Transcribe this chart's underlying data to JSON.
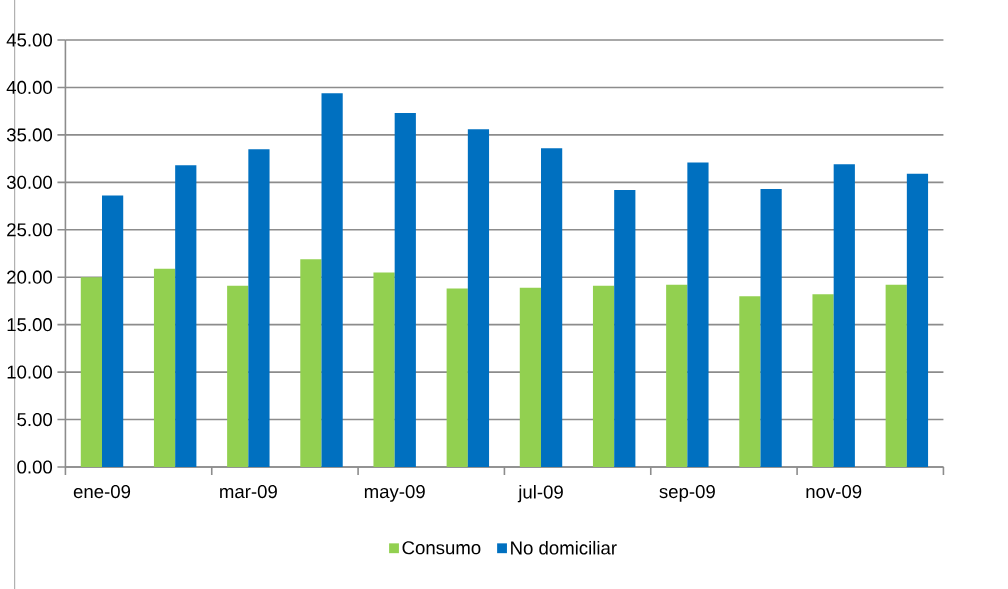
{
  "chart_data": {
    "type": "bar",
    "categories": [
      "ene-09",
      null,
      "mar-09",
      null,
      "may-09",
      null,
      "jul-09",
      null,
      "sep-09",
      null,
      "nov-09",
      null
    ],
    "series": [
      {
        "name": "Consumo",
        "color": "#92d050",
        "values": [
          20.0,
          20.9,
          19.1,
          21.9,
          20.5,
          18.8,
          18.9,
          19.1,
          19.2,
          18.0,
          18.2,
          19.2
        ]
      },
      {
        "name": "No domiciliar",
        "color": "#0070c0",
        "values": [
          28.6,
          31.8,
          33.5,
          39.4,
          37.3,
          35.6,
          33.6,
          29.2,
          32.1,
          29.3,
          31.9,
          30.9
        ]
      }
    ],
    "ylim": [
      0,
      45
    ],
    "yticks": [
      {
        "value": 0,
        "label": "0.00"
      },
      {
        "value": 5,
        "label": "5.00"
      },
      {
        "value": 10,
        "label": "10.00"
      },
      {
        "value": 15,
        "label": "15.00"
      },
      {
        "value": 20,
        "label": "20.00"
      },
      {
        "value": 25,
        "label": "25.00"
      },
      {
        "value": 30,
        "label": "30.00"
      },
      {
        "value": 35,
        "label": "35.00"
      },
      {
        "value": 40,
        "label": "40.00"
      },
      {
        "value": 45,
        "label": "45.00"
      }
    ],
    "grid": "y",
    "legend": "bottom"
  }
}
